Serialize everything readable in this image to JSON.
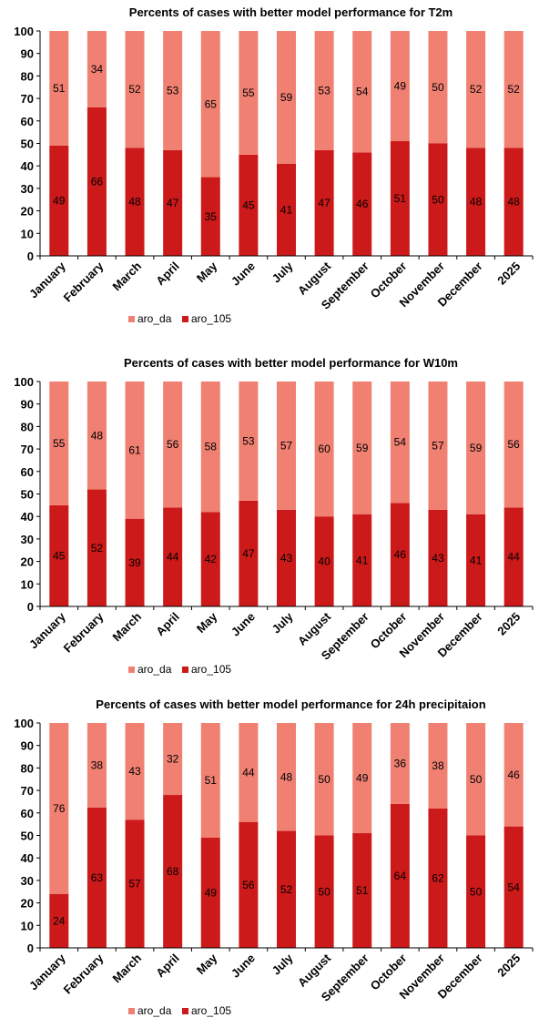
{
  "chart_data": [
    {
      "type": "bar",
      "stacked": true,
      "percent": true,
      "title": "Percents of cases with better model performance for T2m",
      "categories": [
        "January",
        "February",
        "March",
        "April",
        "May",
        "June",
        "July",
        "August",
        "September",
        "October",
        "November",
        "December",
        "2025"
      ],
      "series": [
        {
          "name": "aro_105",
          "color": "#cc1919",
          "values": [
            49,
            66,
            48,
            47,
            35,
            45,
            41,
            47,
            46,
            51,
            50,
            48,
            48
          ]
        },
        {
          "name": "aro_da",
          "color": "#f08072",
          "values": [
            51,
            34,
            52,
            53,
            65,
            55,
            59,
            53,
            54,
            49,
            50,
            52,
            52
          ]
        }
      ],
      "ylim": [
        0,
        100
      ],
      "yticks": [
        "0",
        "10",
        "20",
        "30",
        "40",
        "50",
        "60",
        "70",
        "80",
        "90",
        "100"
      ],
      "grid": false,
      "legend": "bottom"
    },
    {
      "type": "bar",
      "stacked": true,
      "percent": true,
      "title": "Percents of cases with better model performance for W10m",
      "categories": [
        "January",
        "February",
        "March",
        "April",
        "May",
        "June",
        "July",
        "August",
        "September",
        "October",
        "November",
        "December",
        "2025"
      ],
      "series": [
        {
          "name": "aro_105",
          "color": "#cc1919",
          "values": [
            45,
            52,
            39,
            44,
            42,
            47,
            43,
            40,
            41,
            46,
            43,
            41,
            44
          ]
        },
        {
          "name": "aro_da",
          "color": "#f08072",
          "values": [
            55,
            48,
            61,
            56,
            58,
            53,
            57,
            60,
            59,
            54,
            57,
            59,
            56
          ]
        }
      ],
      "ylim": [
        0,
        100
      ],
      "yticks": [
        "0",
        "10",
        "20",
        "30",
        "40",
        "50",
        "60",
        "70",
        "80",
        "90",
        "100"
      ],
      "grid": false,
      "legend": "bottom"
    },
    {
      "type": "bar",
      "stacked": true,
      "percent": true,
      "title": "Percents of cases with better model performance for 24h precipitaion",
      "categories": [
        "January",
        "February",
        "March",
        "April",
        "May",
        "June",
        "July",
        "August",
        "September",
        "October",
        "November",
        "December",
        "2025"
      ],
      "series": [
        {
          "name": "aro_105",
          "color": "#cc1919",
          "values": [
            24,
            63,
            57,
            68,
            49,
            56,
            52,
            50,
            51,
            64,
            62,
            50,
            54
          ]
        },
        {
          "name": "aro_da",
          "color": "#f08072",
          "values": [
            76,
            38,
            43,
            32,
            51,
            44,
            48,
            50,
            49,
            36,
            38,
            50,
            46
          ]
        }
      ],
      "ylim": [
        0,
        100
      ],
      "yticks": [
        "0",
        "10",
        "20",
        "30",
        "40",
        "50",
        "60",
        "70",
        "80",
        "90",
        "100"
      ],
      "grid": false,
      "legend": "bottom"
    }
  ]
}
